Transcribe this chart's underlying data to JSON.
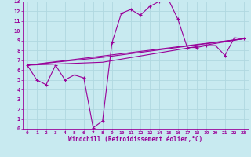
{
  "bg_color": "#c8eaf0",
  "grid_color": "#b0d8e0",
  "line_color": "#990099",
  "xlabel": "Windchill (Refroidissement éolien,°C)",
  "xlim": [
    -0.5,
    23.5
  ],
  "ylim": [
    0,
    13
  ],
  "xticks": [
    0,
    1,
    2,
    3,
    4,
    5,
    6,
    7,
    8,
    9,
    10,
    11,
    12,
    13,
    14,
    15,
    16,
    17,
    18,
    19,
    20,
    21,
    22,
    23
  ],
  "yticks": [
    0,
    1,
    2,
    3,
    4,
    5,
    6,
    7,
    8,
    9,
    10,
    11,
    12,
    13
  ],
  "series1_x": [
    0,
    1,
    2,
    3,
    4,
    5,
    6,
    7,
    8,
    9,
    10,
    11,
    12,
    13,
    14,
    15,
    16,
    17,
    18,
    19,
    20,
    21,
    22,
    23
  ],
  "series1_y": [
    6.5,
    5.0,
    4.5,
    6.5,
    5.0,
    5.5,
    5.2,
    0.1,
    0.8,
    8.8,
    11.8,
    12.2,
    11.6,
    12.5,
    13.0,
    13.2,
    11.2,
    8.3,
    8.3,
    8.5,
    8.5,
    7.5,
    9.3,
    9.2
  ],
  "series2_x": [
    0,
    23
  ],
  "series2_y": [
    6.5,
    9.2
  ],
  "series3_x": [
    0,
    8,
    23
  ],
  "series3_y": [
    6.5,
    7.3,
    9.2
  ],
  "series4_x": [
    0,
    8,
    23
  ],
  "series4_y": [
    6.5,
    6.8,
    9.2
  ]
}
